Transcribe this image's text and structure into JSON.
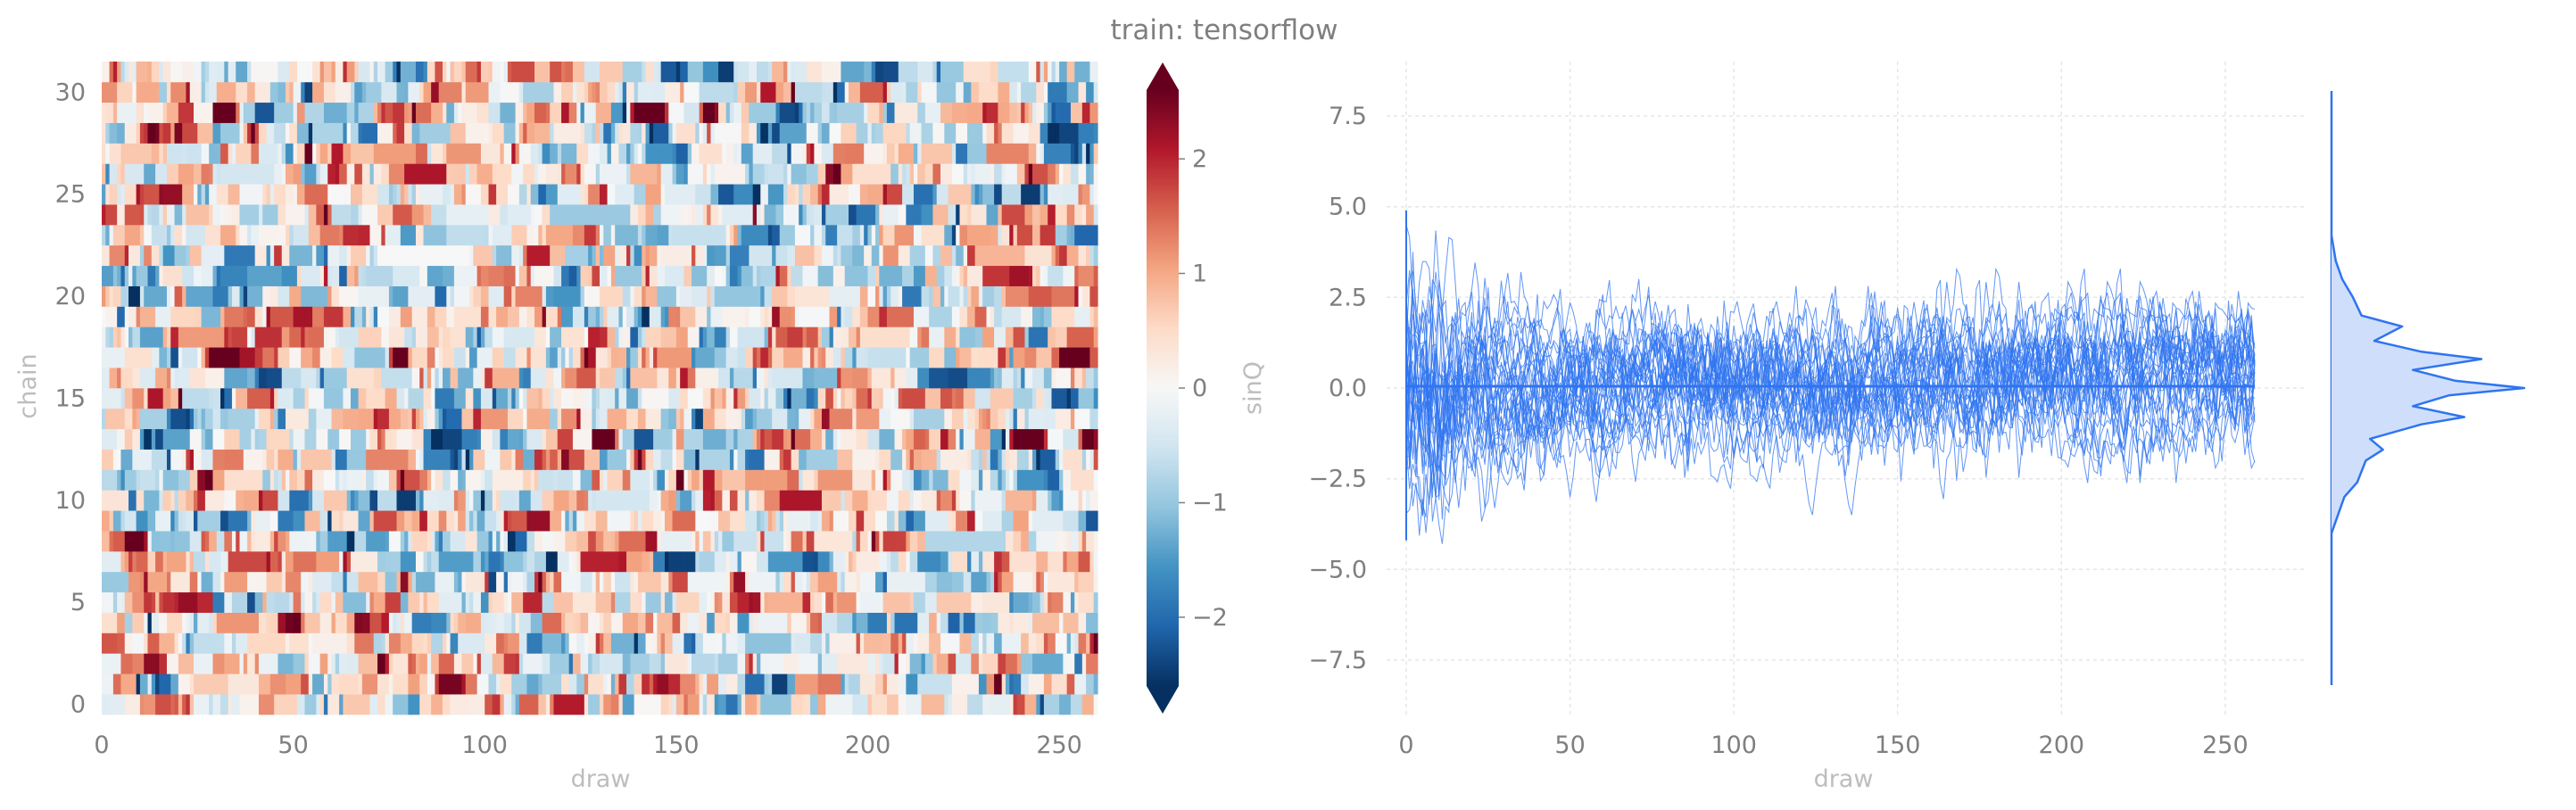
{
  "title": "train: tensorflow",
  "colors": {
    "trace": "#2f74f0",
    "trace_fill": "#cfdffb",
    "text": "#7f7f7f",
    "label": "#bdbdbd",
    "grid": "#e6e6e6"
  },
  "chart_data": [
    {
      "type": "heatmap",
      "xlabel": "draw",
      "ylabel": "chain",
      "colorbar_label": "sinQ",
      "colormap": "RdBu_r",
      "xlim": [
        0,
        260
      ],
      "ylim": [
        0,
        31
      ],
      "n_draws": 260,
      "n_chains": 32,
      "clim": [
        -2.6,
        2.6
      ],
      "xticks": [
        0,
        50,
        100,
        150,
        200,
        250
      ],
      "yticks": [
        0,
        5,
        10,
        15,
        20,
        25,
        30
      ],
      "colorbar_ticks": [
        -2,
        -1,
        0,
        1,
        2
      ],
      "values_note": "per-draw sinQ values per chain, approx range -2.6..2.6 (extended colorbar)"
    },
    {
      "type": "line",
      "xlabel": "draw",
      "ylabel": "",
      "xlim": [
        -6,
        274
      ],
      "ylim": [
        -9,
        9
      ],
      "xticks": [
        0,
        50,
        100,
        150,
        200,
        250
      ],
      "yticks": [
        -7.5,
        -5.0,
        -2.5,
        0.0,
        2.5,
        5.0,
        7.5
      ],
      "n_series": 32,
      "n_draws": 260,
      "mean_line": 0.05,
      "spread_range": [
        -4.5,
        4.5
      ],
      "grid": true
    },
    {
      "type": "area",
      "orientation": "vertical",
      "description_of": "marginal density of trace values",
      "y": [
        -4.0,
        -3.5,
        -3.0,
        -2.6,
        -2.0,
        -1.7,
        -1.4,
        -1.0,
        -0.8,
        -0.5,
        -0.2,
        0.0,
        0.2,
        0.5,
        0.8,
        1.0,
        1.3,
        1.7,
        2.0,
        2.5,
        3.0,
        3.5,
        4.2
      ],
      "density": [
        0.0,
        0.03,
        0.06,
        0.12,
        0.16,
        0.24,
        0.18,
        0.42,
        0.62,
        0.38,
        0.55,
        0.9,
        0.58,
        0.38,
        0.7,
        0.42,
        0.2,
        0.33,
        0.14,
        0.1,
        0.05,
        0.02,
        0.0
      ]
    }
  ]
}
